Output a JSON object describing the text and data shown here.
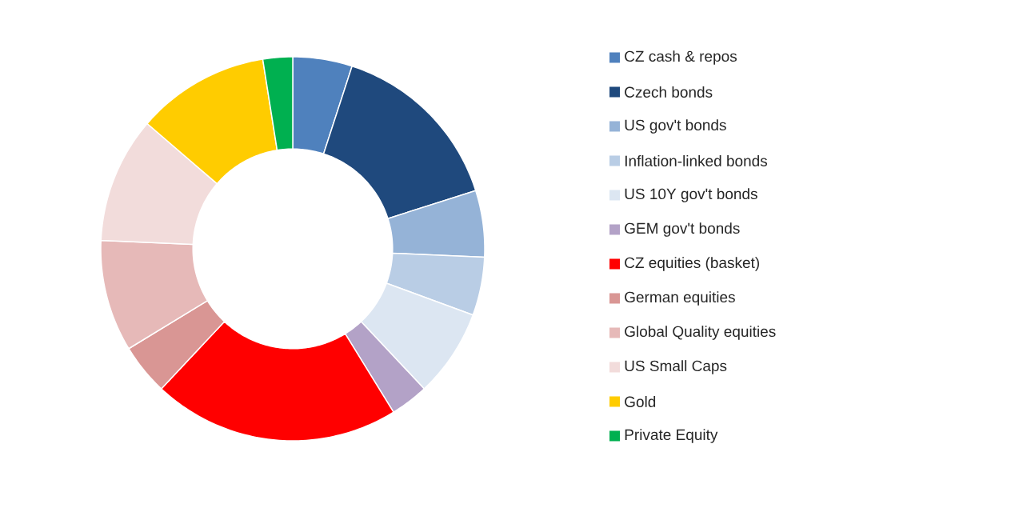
{
  "chart_data": {
    "type": "donut",
    "categories": [
      "CZ cash & repos",
      "Czech bonds",
      "US gov't bonds",
      "Inflation-linked bonds",
      "US 10Y gov't bonds",
      "GEM gov't bonds",
      "CZ equities (basket)",
      "German equities",
      "Global Quality equities",
      "US Small Caps",
      "Gold",
      "Private Equity"
    ],
    "values": [
      5.0,
      15.1,
      5.6,
      4.9,
      7.4,
      3.2,
      20.8,
      4.3,
      9.4,
      10.6,
      11.2,
      2.5
    ],
    "colors": [
      "#4f81bd",
      "#1f497d",
      "#95b3d7",
      "#b9cde5",
      "#dce6f2",
      "#b3a2c7",
      "#ff0000",
      "#d99694",
      "#e6b9b8",
      "#f2dcdb",
      "#ffcc00",
      "#00b050"
    ],
    "legend": "right"
  }
}
